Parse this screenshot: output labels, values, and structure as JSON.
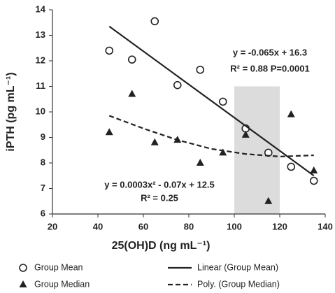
{
  "chart_data": {
    "type": "scatter",
    "x_label": "25(OH)D (ng mL⁻¹)",
    "y_label": "iPTH (pg mL⁻¹)",
    "xlim": [
      20,
      140
    ],
    "xticks": [
      20,
      40,
      60,
      80,
      100,
      120,
      140
    ],
    "ylim": [
      6,
      14
    ],
    "yticks": [
      6,
      7,
      8,
      9,
      10,
      11,
      12,
      13,
      14
    ],
    "shaded_region": {
      "x": [
        100,
        120
      ],
      "y": [
        6,
        11
      ],
      "color": "#dcdcdc"
    },
    "series": [
      {
        "name": "Group Mean",
        "marker": "circle",
        "color": "#222222",
        "x": [
          45,
          55,
          65,
          75,
          85,
          95,
          105,
          115,
          125,
          135
        ],
        "values": [
          12.4,
          12.05,
          13.55,
          11.05,
          11.65,
          10.4,
          9.35,
          8.4,
          7.85,
          7.3
        ]
      },
      {
        "name": "Group Median",
        "marker": "triangle",
        "color": "#222222",
        "x": [
          45,
          55,
          65,
          75,
          85,
          95,
          105,
          115,
          125,
          135
        ],
        "values": [
          9.2,
          10.7,
          8.8,
          8.9,
          8.0,
          8.4,
          9.1,
          6.5,
          9.9,
          7.7
        ]
      },
      {
        "name": "Linear (Group Mean)",
        "marker": "line",
        "style": "solid",
        "color": "#222222",
        "x": [
          45,
          135
        ],
        "values": [
          13.35,
          7.5
        ]
      },
      {
        "name": "Poly. (Group Median)",
        "marker": "line",
        "style": "dashed",
        "color": "#222222",
        "x": [
          45,
          60,
          75,
          90,
          105,
          120,
          135
        ],
        "values": [
          9.85,
          9.35,
          8.9,
          8.55,
          8.35,
          8.25,
          8.3
        ]
      }
    ],
    "annotations": [
      "y = -0.065x + 16.3",
      "R² = 0.88 P=0.0001",
      "y = 0.0003x² - 0.07x + 12.5",
      "R² = 0.25"
    ]
  }
}
